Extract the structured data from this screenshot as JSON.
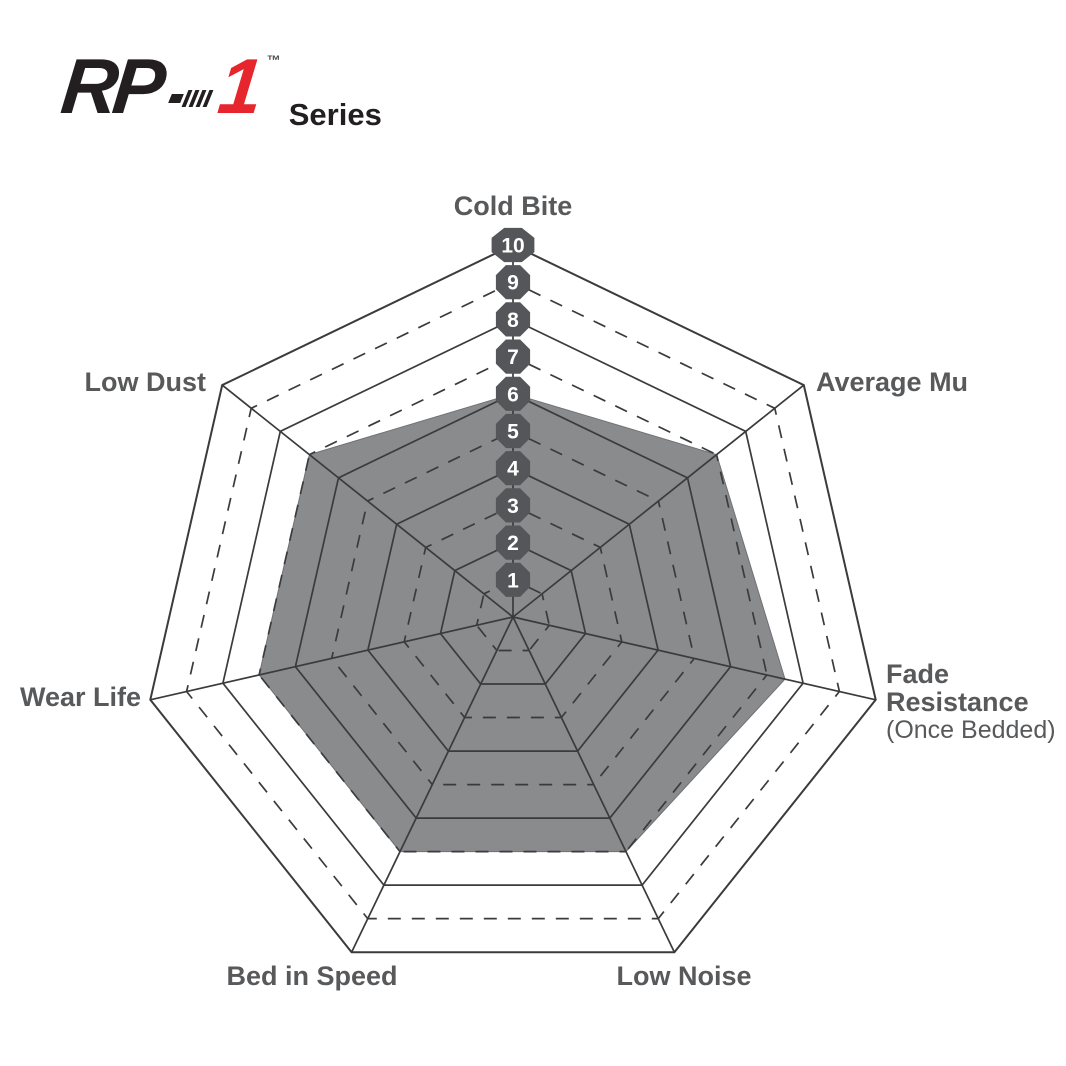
{
  "logo": {
    "rp": "RP",
    "one": "1",
    "tm": "™",
    "series": "Series",
    "red": "#e6252c",
    "black": "#231f20"
  },
  "chart_data": {
    "type": "radar",
    "title": "RP-1 Series brake pad performance ratings",
    "max": 10,
    "min": 0,
    "rings": 10,
    "categories": [
      "Cold Bite",
      "Average Mu",
      "Fade Resistance",
      "Low Noise",
      "Bed in Speed",
      "Wear Life",
      "Low Dust"
    ],
    "category_sublabels": [
      "",
      "",
      "(Once Bedded)",
      "",
      "",
      "",
      ""
    ],
    "values": [
      6,
      7,
      7.5,
      7,
      7,
      7,
      7
    ],
    "scale_ticks": [
      1,
      2,
      3,
      4,
      5,
      6,
      7,
      8,
      9,
      10
    ],
    "grid": {
      "even_rings": "solid",
      "odd_rings": "dashed",
      "spokes": "solid"
    },
    "legend": "none",
    "colors": {
      "fill": "#8a8b8d",
      "fill_stroke": "#707175",
      "line": "#3a3b3d",
      "badge": "#54565a",
      "badge_text": "#ffffff",
      "label": "#58595b"
    }
  }
}
